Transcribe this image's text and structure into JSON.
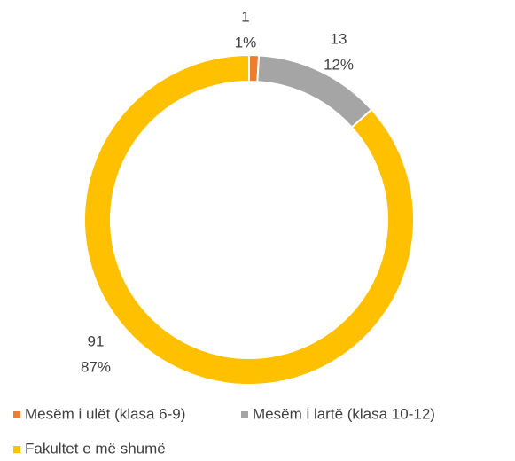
{
  "chart_data": {
    "type": "donut",
    "categories": [
      "Mesëm i ulët (klasa 6-9)",
      "Mesëm i lartë (klasa 10-12)",
      "Fakultet e më shumë"
    ],
    "values": [
      1,
      13,
      91
    ],
    "percent_labels": [
      "1%",
      "12%",
      "87%"
    ],
    "colors": [
      "#ed7d31",
      "#a5a5a5",
      "#ffc000"
    ],
    "legend": "bottom"
  }
}
